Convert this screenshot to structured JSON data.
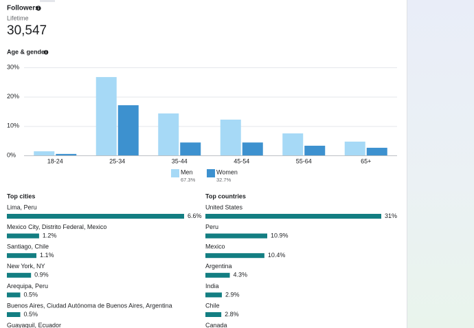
{
  "header": {
    "title": "Followers",
    "subtitle": "Lifetime",
    "total": "30,547"
  },
  "chart_data": {
    "type": "bar",
    "title": "Age & gender",
    "categories": [
      "18-24",
      "25-34",
      "35-44",
      "45-54",
      "55-64",
      "65+"
    ],
    "series": [
      {
        "name": "Men",
        "subtitle": "67.3%",
        "color": "#a6d9f6",
        "values": [
          1.4,
          26.7,
          14.3,
          12.2,
          7.5,
          4.7
        ]
      },
      {
        "name": "Women",
        "subtitle": "32.7%",
        "color": "#3d91cf",
        "values": [
          0.5,
          17.1,
          4.4,
          4.4,
          3.3,
          2.6
        ]
      }
    ],
    "ylim": [
      0,
      30
    ],
    "yticks": [
      {
        "value": 0,
        "label": "0%"
      },
      {
        "value": 10,
        "label": "10%"
      },
      {
        "value": 20,
        "label": "20%"
      },
      {
        "value": 30,
        "label": "30%"
      }
    ],
    "grid": true
  },
  "top_cities": {
    "title": "Top cities",
    "color": "#137e82",
    "items": [
      {
        "name": "Lima, Peru",
        "value": 6.6,
        "value_label": "6.6%"
      },
      {
        "name": "Mexico City, Distrito Federal, Mexico",
        "value": 1.2,
        "value_label": "1.2%"
      },
      {
        "name": "Santiago, Chile",
        "value": 1.1,
        "value_label": "1.1%"
      },
      {
        "name": "New York, NY",
        "value": 0.9,
        "value_label": "0.9%"
      },
      {
        "name": "Arequipa, Peru",
        "value": 0.5,
        "value_label": "0.5%"
      },
      {
        "name": "Buenos Aires, Ciudad Autónoma de Buenos Aires, Argentina",
        "value": 0.5,
        "value_label": "0.5%"
      },
      {
        "name": "Guayaquil, Ecuador"
      }
    ]
  },
  "top_countries": {
    "title": "Top countries",
    "color": "#137e82",
    "items": [
      {
        "name": "United States",
        "value": 31,
        "value_label": "31%"
      },
      {
        "name": "Peru",
        "value": 10.9,
        "value_label": "10.9%"
      },
      {
        "name": "Mexico",
        "value": 10.4,
        "value_label": "10.4%"
      },
      {
        "name": "Argentina",
        "value": 4.3,
        "value_label": "4.3%"
      },
      {
        "name": "India",
        "value": 2.9,
        "value_label": "2.9%"
      },
      {
        "name": "Chile",
        "value": 2.8,
        "value_label": "2.8%"
      },
      {
        "name": "Canada"
      }
    ]
  }
}
